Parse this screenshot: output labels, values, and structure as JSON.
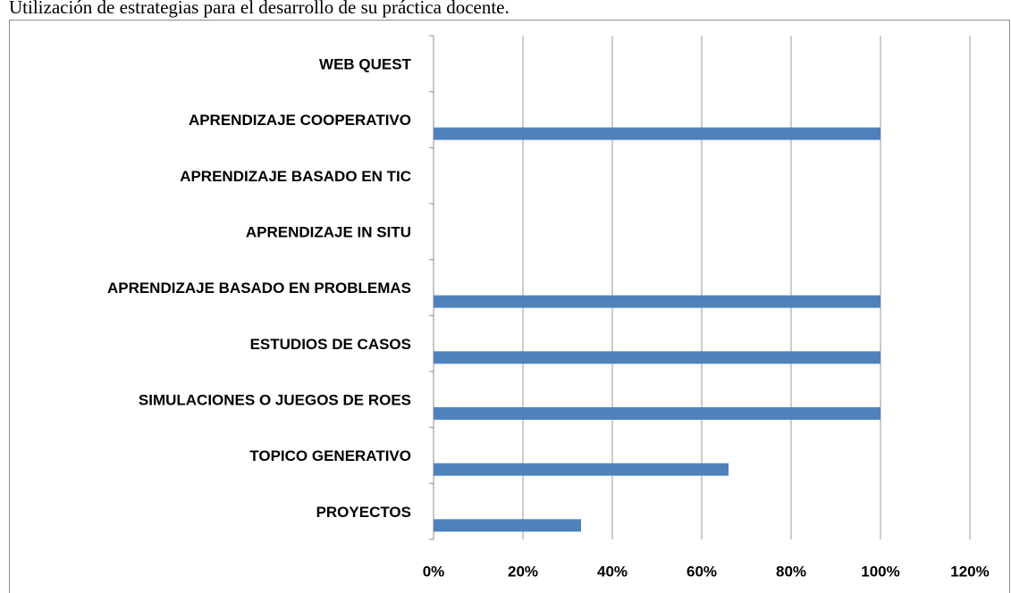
{
  "chart_data": {
    "type": "hbar",
    "title": "Utilización de estrategias para el desarrollo de su práctica docente.",
    "categories": [
      "PROYECTOS",
      "TOPICO GENERATIVO",
      "SIMULACIONES O JUEGOS DE ROES",
      "ESTUDIOS DE CASOS",
      "APRENDIZAJE BASADO EN PROBLEMAS",
      "APRENDIZAJE IN SITU",
      "APRENDIZAJE BASADO EN TIC",
      "APRENDIZAJE COOPERATIVO",
      "WEB QUEST"
    ],
    "values": [
      33,
      66,
      100,
      100,
      100,
      0,
      0,
      100,
      0
    ],
    "color": "#4f81bd",
    "xlim": [
      0,
      120
    ],
    "xticks": [
      {
        "value": 0,
        "label": "0%"
      },
      {
        "value": 20,
        "label": "20%"
      },
      {
        "value": 40,
        "label": "40%"
      },
      {
        "value": 60,
        "label": "60%"
      },
      {
        "value": 80,
        "label": "80%"
      },
      {
        "value": 100,
        "label": "100%"
      },
      {
        "value": 120,
        "label": "120%"
      }
    ],
    "grid": true
  }
}
